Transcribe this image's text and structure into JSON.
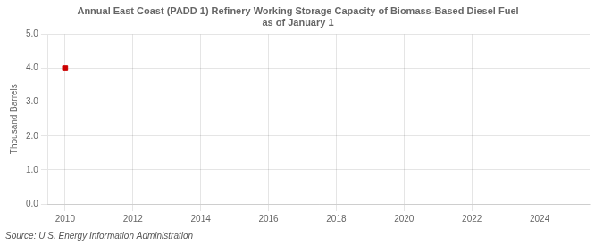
{
  "chart_data": {
    "type": "scatter",
    "title": "Annual East Coast (PADD 1) Refinery Working Storage Capacity of Biomass-Based Diesel Fuel\nas of January 1",
    "ylabel": "Thousand Barrels",
    "annotation": "Source: U.S. Energy Information Administration",
    "x": [
      2010
    ],
    "values": [
      4.0
    ],
    "color": "#cc0000",
    "marker": "square",
    "xlim": [
      2009.5,
      2025.5
    ],
    "ylim": [
      0.0,
      5.0
    ],
    "xticks": [
      2010,
      2012,
      2014,
      2016,
      2018,
      2020,
      2022,
      2024
    ],
    "yticks": [
      {
        "value": 0.0,
        "label": "0.0"
      },
      {
        "value": 1.0,
        "label": "1.0"
      },
      {
        "value": 2.0,
        "label": "2.0"
      },
      {
        "value": 3.0,
        "label": "3.0"
      },
      {
        "value": 4.0,
        "label": "4.0"
      },
      {
        "value": 5.0,
        "label": "5.0"
      }
    ],
    "grid": true
  }
}
